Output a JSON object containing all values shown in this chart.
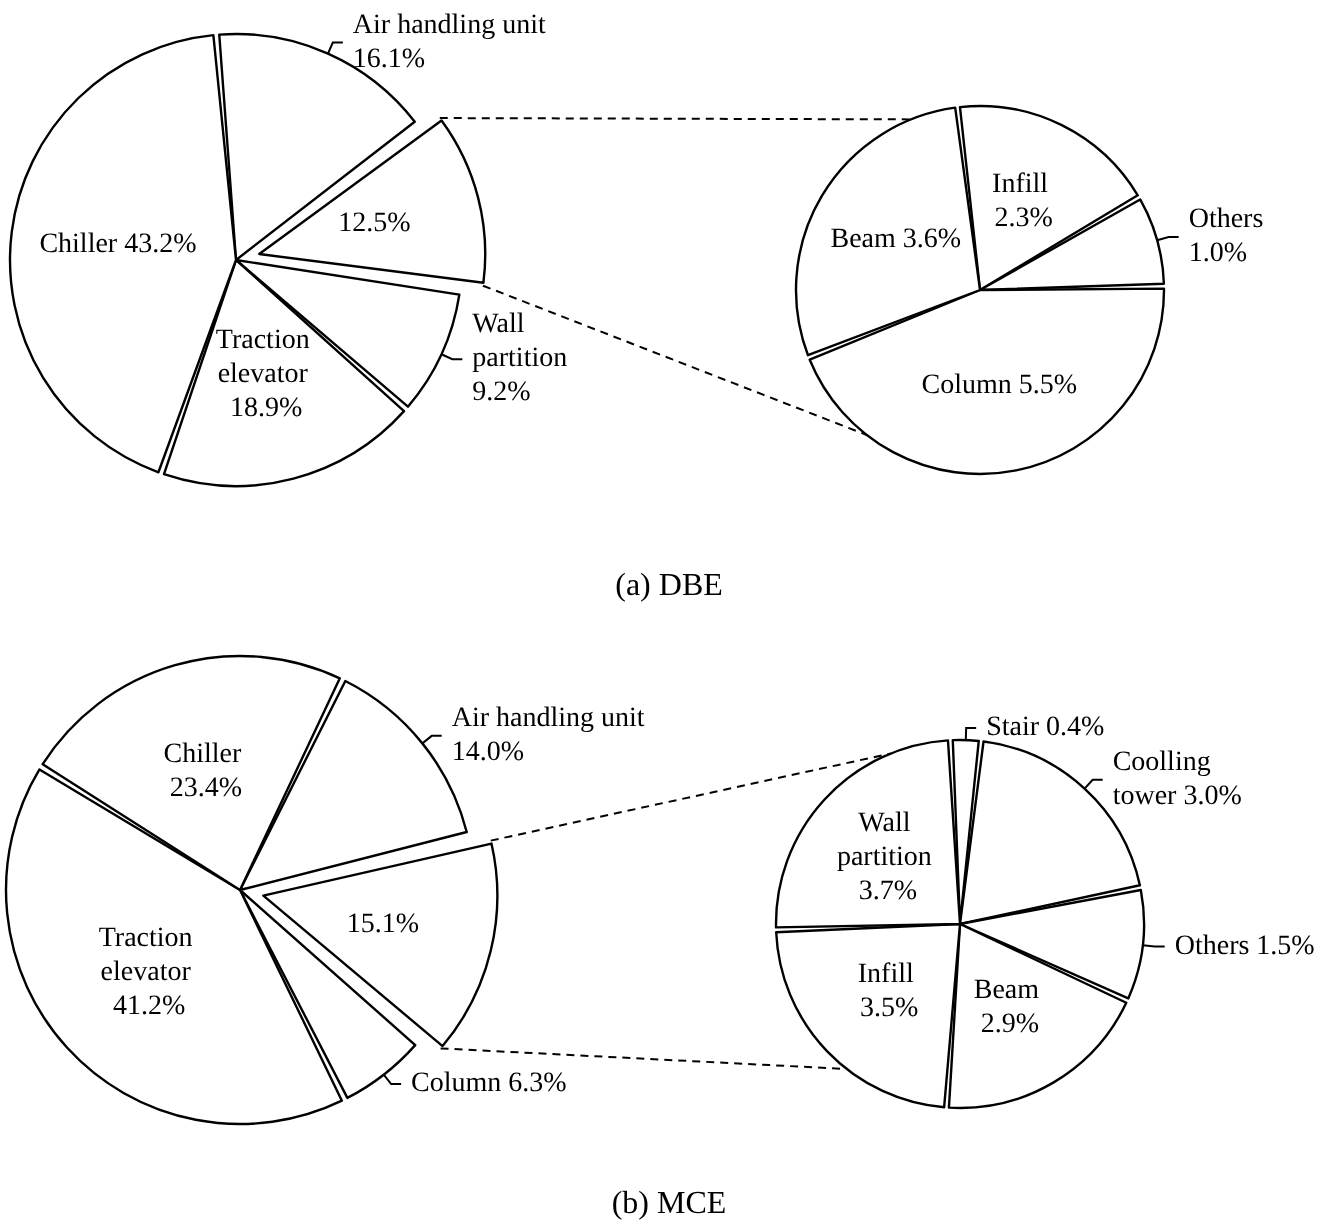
{
  "chart_data": [
    {
      "type": "pie",
      "title": "(a) DBE",
      "categories": [
        "Air handling unit",
        null,
        "Wall partition",
        "Traction elevator",
        "Chiller"
      ],
      "values": [
        16.1,
        12.5,
        9.2,
        18.9,
        43.2
      ],
      "value_labels": [
        "16.1%",
        "12.5%",
        "9.2%",
        "18.9%",
        "43.2%"
      ],
      "colors": [
        "#ffffff",
        "#ffffff",
        "#ffffff",
        "#ffffff",
        "#ffffff"
      ]
    },
    {
      "type": "pie",
      "categories": [
        "Infill",
        "Others",
        "Column",
        "Beam"
      ],
      "values": [
        2.3,
        1.0,
        5.5,
        3.6
      ],
      "value_labels": [
        "2.3%",
        "1.0%",
        "5.5%",
        "3.6%"
      ],
      "colors": [
        "#ffffff",
        "#ffffff",
        "#ffffff",
        "#ffffff"
      ]
    },
    {
      "type": "pie",
      "title": "(b) MCE",
      "categories": [
        "Air handling unit",
        null,
        "Column",
        "Traction elevator",
        "Chiller"
      ],
      "values": [
        14.0,
        15.1,
        6.3,
        41.2,
        23.4
      ],
      "value_labels": [
        "14.0%",
        "15.1%",
        "6.3%",
        "41.2%",
        "23.4%"
      ],
      "colors": [
        "#ffffff",
        "#ffffff",
        "#ffffff",
        "#ffffff",
        "#ffffff"
      ]
    },
    {
      "type": "pie",
      "categories": [
        "Stair",
        "Coolling tower",
        "Others",
        "Beam",
        "Infill",
        "Wall partition"
      ],
      "values": [
        0.4,
        3.0,
        1.5,
        2.9,
        3.5,
        3.7
      ],
      "value_labels": [
        "0.4%",
        "3.0%",
        "1.5%",
        "2.9%",
        "3.5%",
        "3.7%"
      ],
      "colors": [
        "#ffffff",
        "#ffffff",
        "#ffffff",
        "#ffffff",
        "#ffffff",
        "#ffffff"
      ]
    }
  ]
}
